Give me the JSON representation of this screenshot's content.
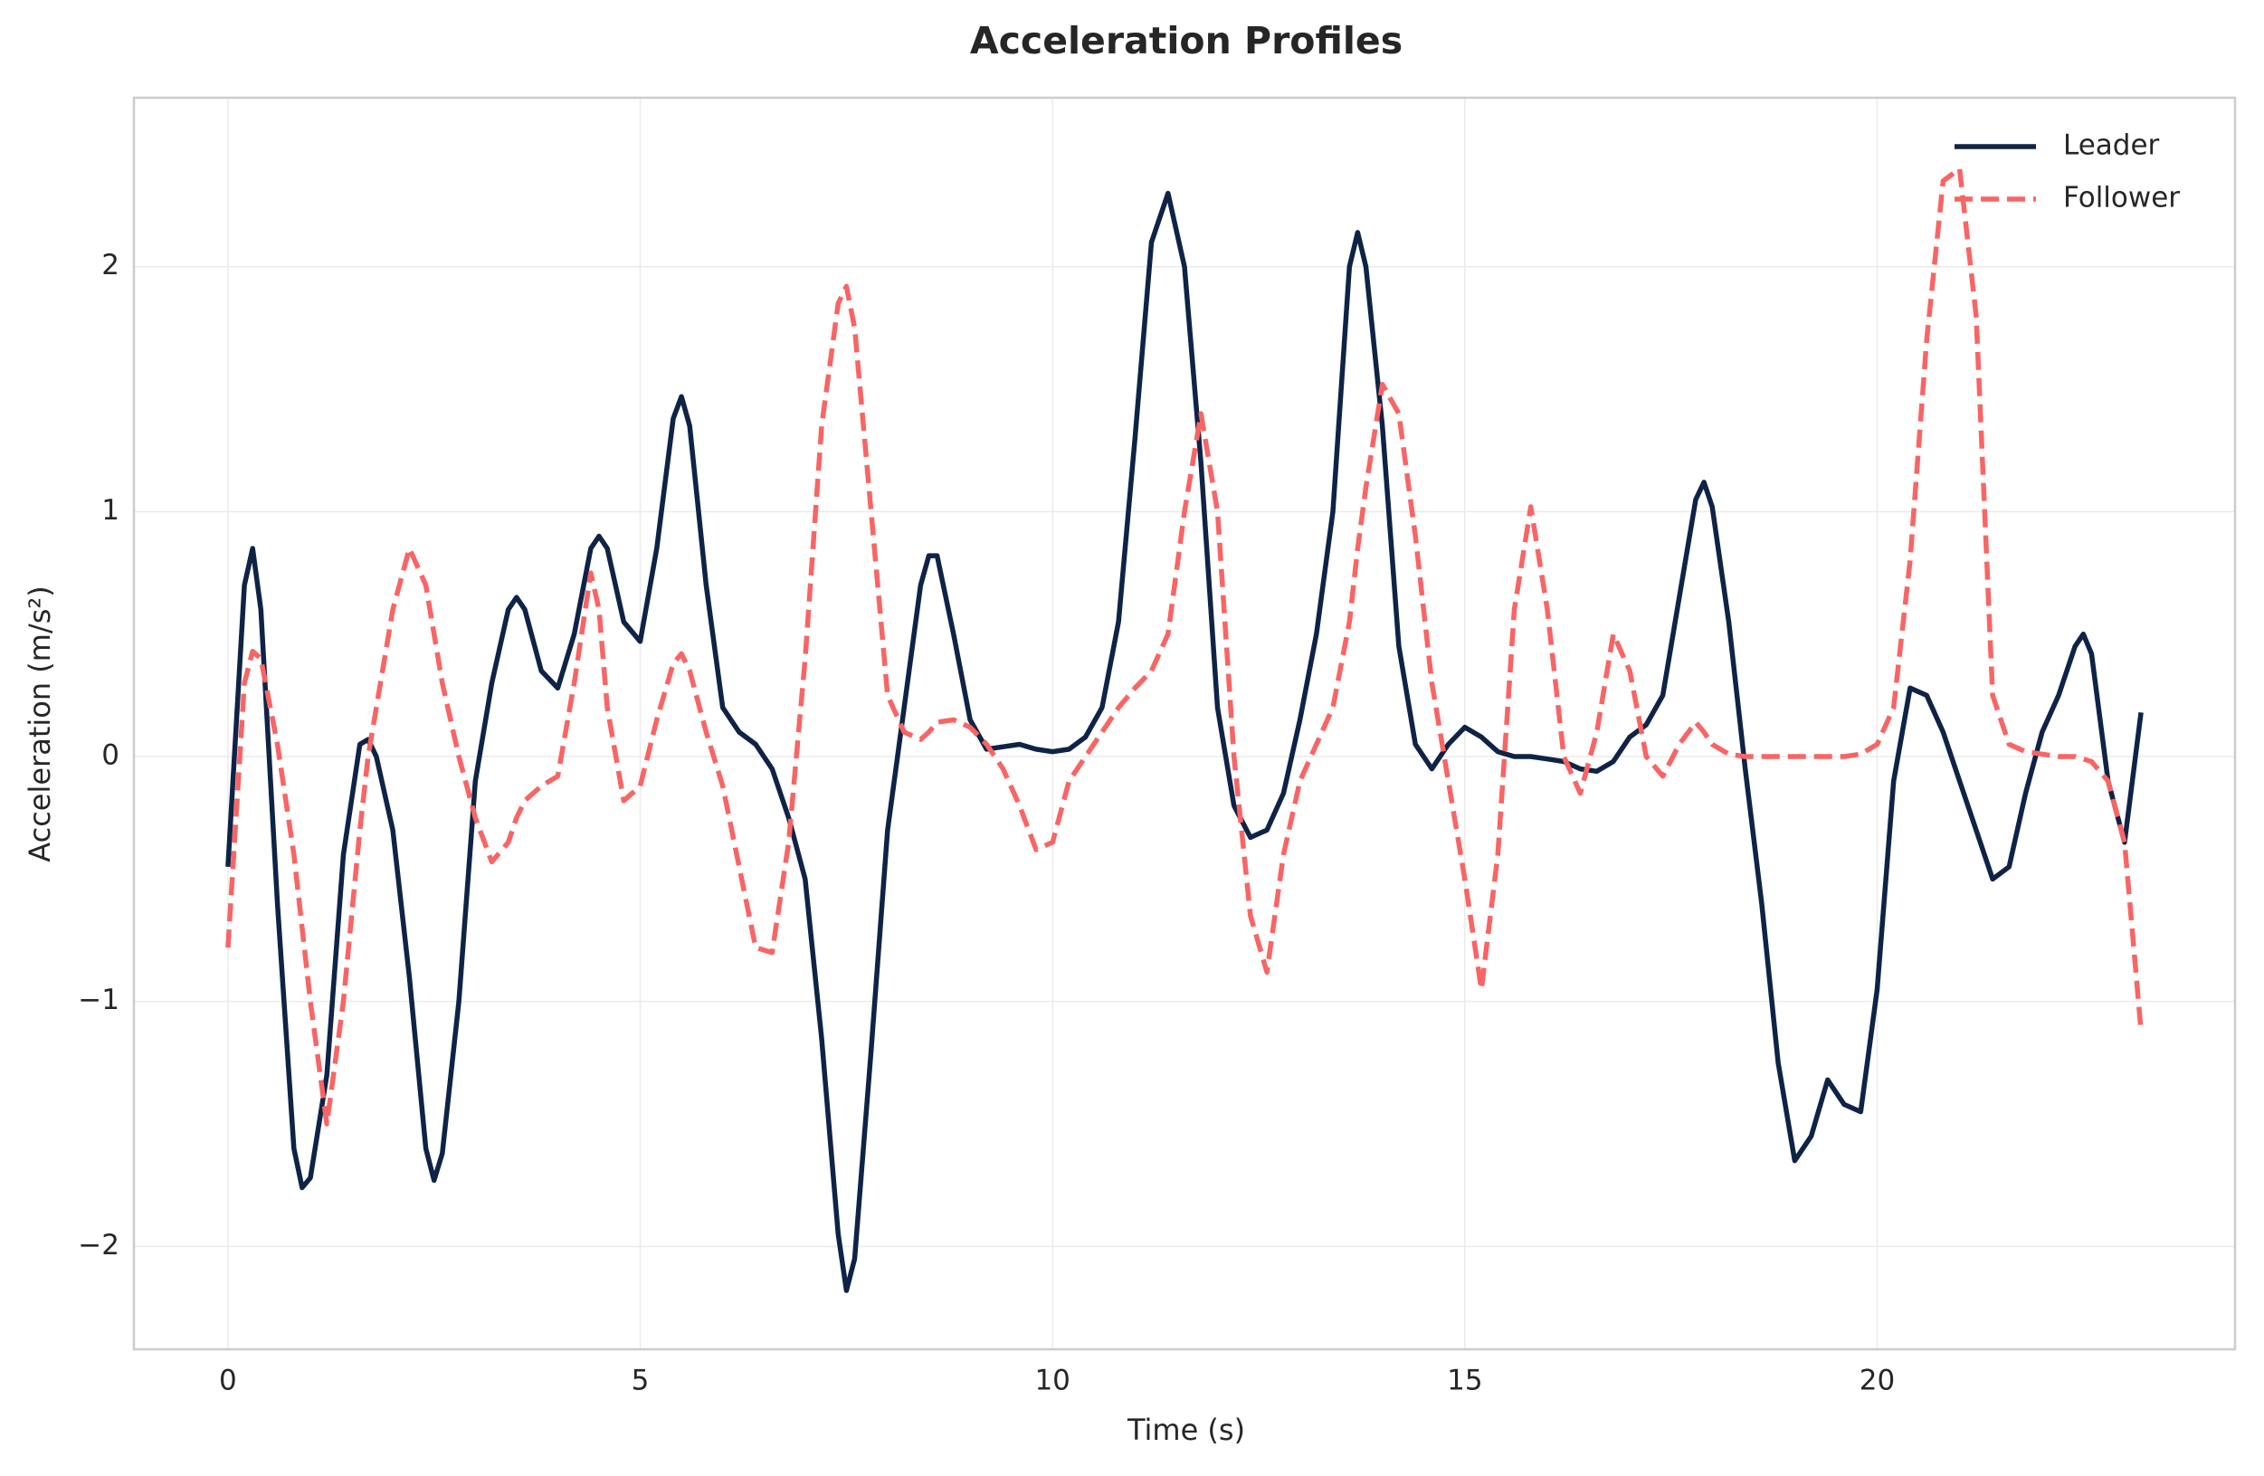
{
  "chart_data": {
    "type": "line",
    "title": "Acceleration Profiles",
    "x_label": "Time (s)",
    "y_label": "Acceleration (m/s²)",
    "x": [
      0,
      0.2,
      0.3,
      0.4,
      0.6,
      0.8,
      0.9,
      1.0,
      1.2,
      1.4,
      1.6,
      1.7,
      1.8,
      2.0,
      2.2,
      2.4,
      2.5,
      2.6,
      2.8,
      3.0,
      3.2,
      3.4,
      3.5,
      3.6,
      3.8,
      4.0,
      4.2,
      4.4,
      4.5,
      4.6,
      4.8,
      5.0,
      5.2,
      5.4,
      5.5,
      5.6,
      5.8,
      6.0,
      6.2,
      6.4,
      6.6,
      6.8,
      7.0,
      7.2,
      7.4,
      7.5,
      7.6,
      7.8,
      8.0,
      8.2,
      8.4,
      8.5,
      8.6,
      8.8,
      9.0,
      9.2,
      9.4,
      9.6,
      9.8,
      10.0,
      10.2,
      10.4,
      10.6,
      10.8,
      11.0,
      11.2,
      11.4,
      11.6,
      11.8,
      12.0,
      12.2,
      12.4,
      12.6,
      12.8,
      13.0,
      13.2,
      13.4,
      13.6,
      13.7,
      13.8,
      14.0,
      14.2,
      14.4,
      14.6,
      14.8,
      15.0,
      15.2,
      15.4,
      15.6,
      15.8,
      16.0,
      16.2,
      16.4,
      16.6,
      16.8,
      17.0,
      17.2,
      17.4,
      17.6,
      17.8,
      17.9,
      18.0,
      18.2,
      18.4,
      18.6,
      18.8,
      19.0,
      19.2,
      19.4,
      19.6,
      19.8,
      20.0,
      20.2,
      20.4,
      20.6,
      20.8,
      21.0,
      21.2,
      21.4,
      21.6,
      21.8,
      22.0,
      22.2,
      22.4,
      22.5,
      22.6,
      22.8,
      23.0,
      23.2
    ],
    "series": [
      {
        "name": "Leader",
        "color": "#0f2347",
        "dash": false,
        "values": [
          -0.45,
          0.7,
          0.85,
          0.6,
          -0.6,
          -1.6,
          -1.76,
          -1.72,
          -1.3,
          -0.4,
          0.05,
          0.07,
          0.0,
          -0.3,
          -0.9,
          -1.6,
          -1.73,
          -1.62,
          -1.0,
          -0.1,
          0.3,
          0.6,
          0.65,
          0.6,
          0.35,
          0.28,
          0.5,
          0.85,
          0.9,
          0.85,
          0.55,
          0.47,
          0.85,
          1.38,
          1.47,
          1.35,
          0.7,
          0.2,
          0.1,
          0.05,
          -0.05,
          -0.25,
          -0.5,
          -1.15,
          -1.95,
          -2.18,
          -2.05,
          -1.2,
          -0.3,
          0.2,
          0.7,
          0.82,
          0.82,
          0.5,
          0.15,
          0.03,
          0.04,
          0.05,
          0.03,
          0.02,
          0.03,
          0.08,
          0.2,
          0.55,
          1.3,
          2.1,
          2.3,
          2.0,
          1.2,
          0.2,
          -0.2,
          -0.33,
          -0.3,
          -0.15,
          0.15,
          0.5,
          1.0,
          2.0,
          2.14,
          2.0,
          1.35,
          0.45,
          0.05,
          -0.05,
          0.05,
          0.12,
          0.08,
          0.02,
          0.0,
          0.0,
          -0.01,
          -0.02,
          -0.05,
          -0.06,
          -0.02,
          0.08,
          0.13,
          0.25,
          0.65,
          1.05,
          1.12,
          1.02,
          0.55,
          -0.05,
          -0.6,
          -1.25,
          -1.65,
          -1.55,
          -1.32,
          -1.42,
          -1.45,
          -0.95,
          -0.1,
          0.28,
          0.25,
          0.1,
          -0.1,
          -0.3,
          -0.5,
          -0.45,
          -0.15,
          0.1,
          0.25,
          0.45,
          0.5,
          0.42,
          -0.1,
          -0.35,
          0.18
        ]
      },
      {
        "name": "Follower",
        "color": "#f96464",
        "dash": true,
        "values": [
          -0.78,
          0.3,
          0.43,
          0.4,
          0.05,
          -0.4,
          -0.7,
          -1.0,
          -1.5,
          -1.0,
          -0.3,
          0.0,
          0.2,
          0.6,
          0.85,
          0.7,
          0.5,
          0.3,
          0.0,
          -0.25,
          -0.43,
          -0.35,
          -0.25,
          -0.18,
          -0.12,
          -0.08,
          0.3,
          0.75,
          0.6,
          0.2,
          -0.18,
          -0.12,
          0.15,
          0.38,
          0.42,
          0.35,
          0.1,
          -0.12,
          -0.45,
          -0.78,
          -0.8,
          -0.35,
          0.4,
          1.35,
          1.85,
          1.92,
          1.75,
          1.0,
          0.25,
          0.1,
          0.07,
          0.1,
          0.14,
          0.15,
          0.12,
          0.05,
          -0.05,
          -0.2,
          -0.38,
          -0.35,
          -0.1,
          0.0,
          0.1,
          0.2,
          0.28,
          0.35,
          0.5,
          1.0,
          1.4,
          1.0,
          0.0,
          -0.65,
          -0.88,
          -0.4,
          -0.1,
          0.05,
          0.2,
          0.55,
          0.85,
          1.1,
          1.52,
          1.4,
          0.9,
          0.3,
          -0.1,
          -0.5,
          -0.95,
          -0.4,
          0.6,
          1.02,
          0.6,
          0.0,
          -0.15,
          0.1,
          0.5,
          0.35,
          0.0,
          -0.08,
          0.05,
          0.14,
          0.1,
          0.05,
          0.01,
          0.0,
          0.0,
          0.0,
          0.0,
          0.0,
          0.0,
          0.0,
          0.01,
          0.05,
          0.2,
          0.8,
          1.7,
          2.35,
          2.4,
          1.8,
          0.25,
          0.05,
          0.02,
          0.01,
          0.0,
          0.0,
          -0.01,
          -0.02,
          -0.1,
          -0.35,
          -1.12
        ]
      }
    ],
    "xlim": [
      -1.14,
      24.34
    ],
    "ylim": [
      -2.42,
      2.69
    ],
    "xticks": [
      0,
      5,
      10,
      15,
      20
    ],
    "yticks": [
      {
        "value": -2,
        "label": "−2"
      },
      {
        "value": -1,
        "label": "−1"
      },
      0,
      1,
      2
    ],
    "grid": true,
    "legend": "upper right"
  }
}
